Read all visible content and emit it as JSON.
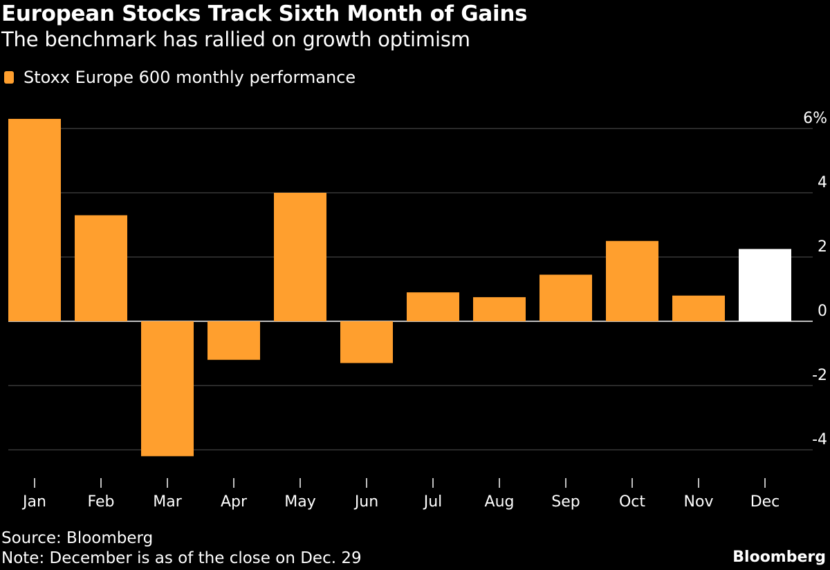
{
  "colors": {
    "background": "#000000",
    "bar": "#ff9f2e",
    "bar_highlight": "#ffffff",
    "grid": "#555555",
    "text": "#ffffff"
  },
  "footer": {
    "source": "Source: Bloomberg",
    "note": "Note: December is as of the close on Dec. 29",
    "brand": "Bloomberg"
  },
  "chart_data": {
    "type": "bar",
    "title": "European Stocks Track Sixth Month of Gains",
    "subtitle": "The benchmark has rallied on growth optimism",
    "legend": "Stoxx Europe 600 monthly performance",
    "categories": [
      "Jan",
      "Feb",
      "Mar",
      "Apr",
      "May",
      "Jun",
      "Jul",
      "Aug",
      "Sep",
      "Oct",
      "Nov",
      "Dec"
    ],
    "series": [
      {
        "name": "Stoxx Europe 600 monthly performance",
        "values": [
          6.3,
          3.3,
          -4.2,
          -1.2,
          4.0,
          -1.3,
          0.9,
          0.75,
          1.45,
          2.5,
          0.8,
          2.25
        ]
      }
    ],
    "highlight_category": "Dec",
    "y_ticks": [
      6,
      4,
      2,
      0,
      -2,
      -4
    ],
    "y_tick_labels": [
      "6%",
      "4",
      "2",
      "0",
      "-2",
      "-4"
    ],
    "ylim": [
      -4.8,
      6.6
    ],
    "xlabel": "",
    "ylabel": "",
    "grid": true,
    "y_axis_position": "right"
  }
}
